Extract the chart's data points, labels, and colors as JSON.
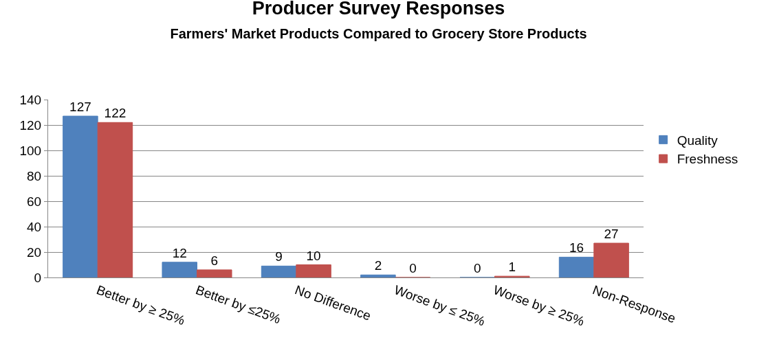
{
  "chart_data": {
    "type": "bar",
    "title": "Producer Survey Responses",
    "subtitle": "Farmers' Market Products Compared to Grocery Store Products",
    "categories": [
      "Better by ≥ 25%",
      "Better by ≤25%",
      "No Difference",
      "Worse by ≤ 25%",
      "Worse by ≥ 25%",
      "Non-Response"
    ],
    "series": [
      {
        "name": "Quality",
        "color": "#4f81bd",
        "values": [
          127,
          12,
          9,
          2,
          0,
          16
        ]
      },
      {
        "name": "Freshness",
        "color": "#c0504d",
        "values": [
          122,
          6,
          10,
          0,
          1,
          27
        ]
      }
    ],
    "ylim": [
      0,
      140
    ],
    "yticks": [
      0,
      20,
      40,
      60,
      80,
      100,
      120,
      140
    ],
    "grid": "y",
    "legend": "right",
    "data_labels": true
  }
}
